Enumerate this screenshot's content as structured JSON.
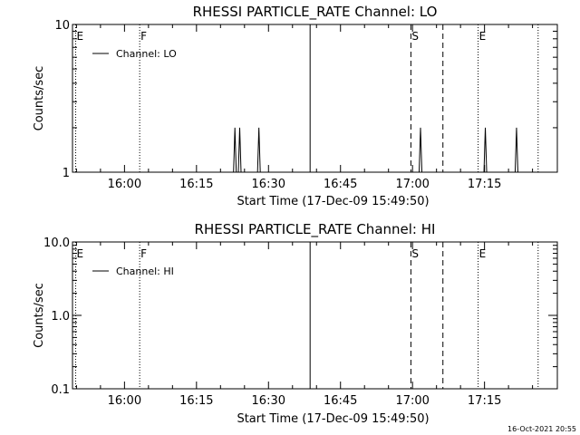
{
  "footer": {
    "timestamp": "16-Oct-2021 20:55"
  },
  "chart_data": [
    {
      "type": "line",
      "title": "RHESSI PARTICLE_RATE Channel: LO",
      "xlabel": "Start Time (17-Dec-09 15:49:50)",
      "ylabel": "Counts/sec",
      "yscale": "log",
      "ylim": [
        1,
        10
      ],
      "xlim_minutes": [
        -10.83,
        90.17
      ],
      "x_tick_labels": [
        "16:00",
        "16:15",
        "16:30",
        "16:45",
        "17:00",
        "17:15"
      ],
      "x_tick_minutes": [
        0,
        15,
        30,
        45,
        60,
        75
      ],
      "y_tick_labels": [
        "1",
        "10"
      ],
      "y_tick_values": [
        1,
        10
      ],
      "series": [
        {
          "name": "Channel: LO",
          "spikes": [
            {
              "time": "16:23:00",
              "counts_per_sec": 2
            },
            {
              "time": "16:24:00",
              "counts_per_sec": 2
            },
            {
              "time": "16:28:00",
              "counts_per_sec": 2
            },
            {
              "time": "17:01:40",
              "counts_per_sec": 2
            },
            {
              "time": "17:15:10",
              "counts_per_sec": 2
            },
            {
              "time": "17:21:40",
              "counts_per_sec": 2
            }
          ]
        }
      ],
      "markers": [
        {
          "label": "E",
          "time": "15:49:50",
          "style": "dotted"
        },
        {
          "label": "F",
          "time": "16:03:10",
          "style": "dotted"
        },
        {
          "label": "",
          "time": "16:38:40",
          "style": "solid"
        },
        {
          "label": "S",
          "time": "16:59:40",
          "style": "dashed"
        },
        {
          "label": "",
          "time": "17:06:20",
          "style": "dashed"
        },
        {
          "label": "E",
          "time": "17:13:40",
          "style": "dotted"
        },
        {
          "label": "",
          "time": "17:26:10",
          "style": "dotted"
        }
      ],
      "legend": {
        "position": "top-left",
        "entries": [
          "Channel: LO"
        ]
      }
    },
    {
      "type": "line",
      "title": "RHESSI PARTICLE_RATE Channel: HI",
      "xlabel": "Start Time (17-Dec-09 15:49:50)",
      "ylabel": "Counts/sec",
      "yscale": "log",
      "ylim": [
        0.1,
        10
      ],
      "xlim_minutes": [
        -10.83,
        90.17
      ],
      "x_tick_labels": [
        "16:00",
        "16:15",
        "16:30",
        "16:45",
        "17:00",
        "17:15"
      ],
      "x_tick_minutes": [
        0,
        15,
        30,
        45,
        60,
        75
      ],
      "y_tick_labels": [
        "0.1",
        "1.0",
        "10.0"
      ],
      "y_tick_values": [
        0.1,
        1,
        10
      ],
      "series": [
        {
          "name": "Channel: HI",
          "spikes": []
        }
      ],
      "markers": [
        {
          "label": "E",
          "time": "15:49:50",
          "style": "dotted"
        },
        {
          "label": "F",
          "time": "16:03:10",
          "style": "dotted"
        },
        {
          "label": "",
          "time": "16:38:40",
          "style": "solid"
        },
        {
          "label": "S",
          "time": "16:59:40",
          "style": "dashed"
        },
        {
          "label": "",
          "time": "17:06:20",
          "style": "dashed"
        },
        {
          "label": "E",
          "time": "17:13:40",
          "style": "dotted"
        },
        {
          "label": "",
          "time": "17:26:10",
          "style": "dotted"
        }
      ],
      "legend": {
        "position": "top-left",
        "entries": [
          "Channel: HI"
        ]
      }
    }
  ]
}
